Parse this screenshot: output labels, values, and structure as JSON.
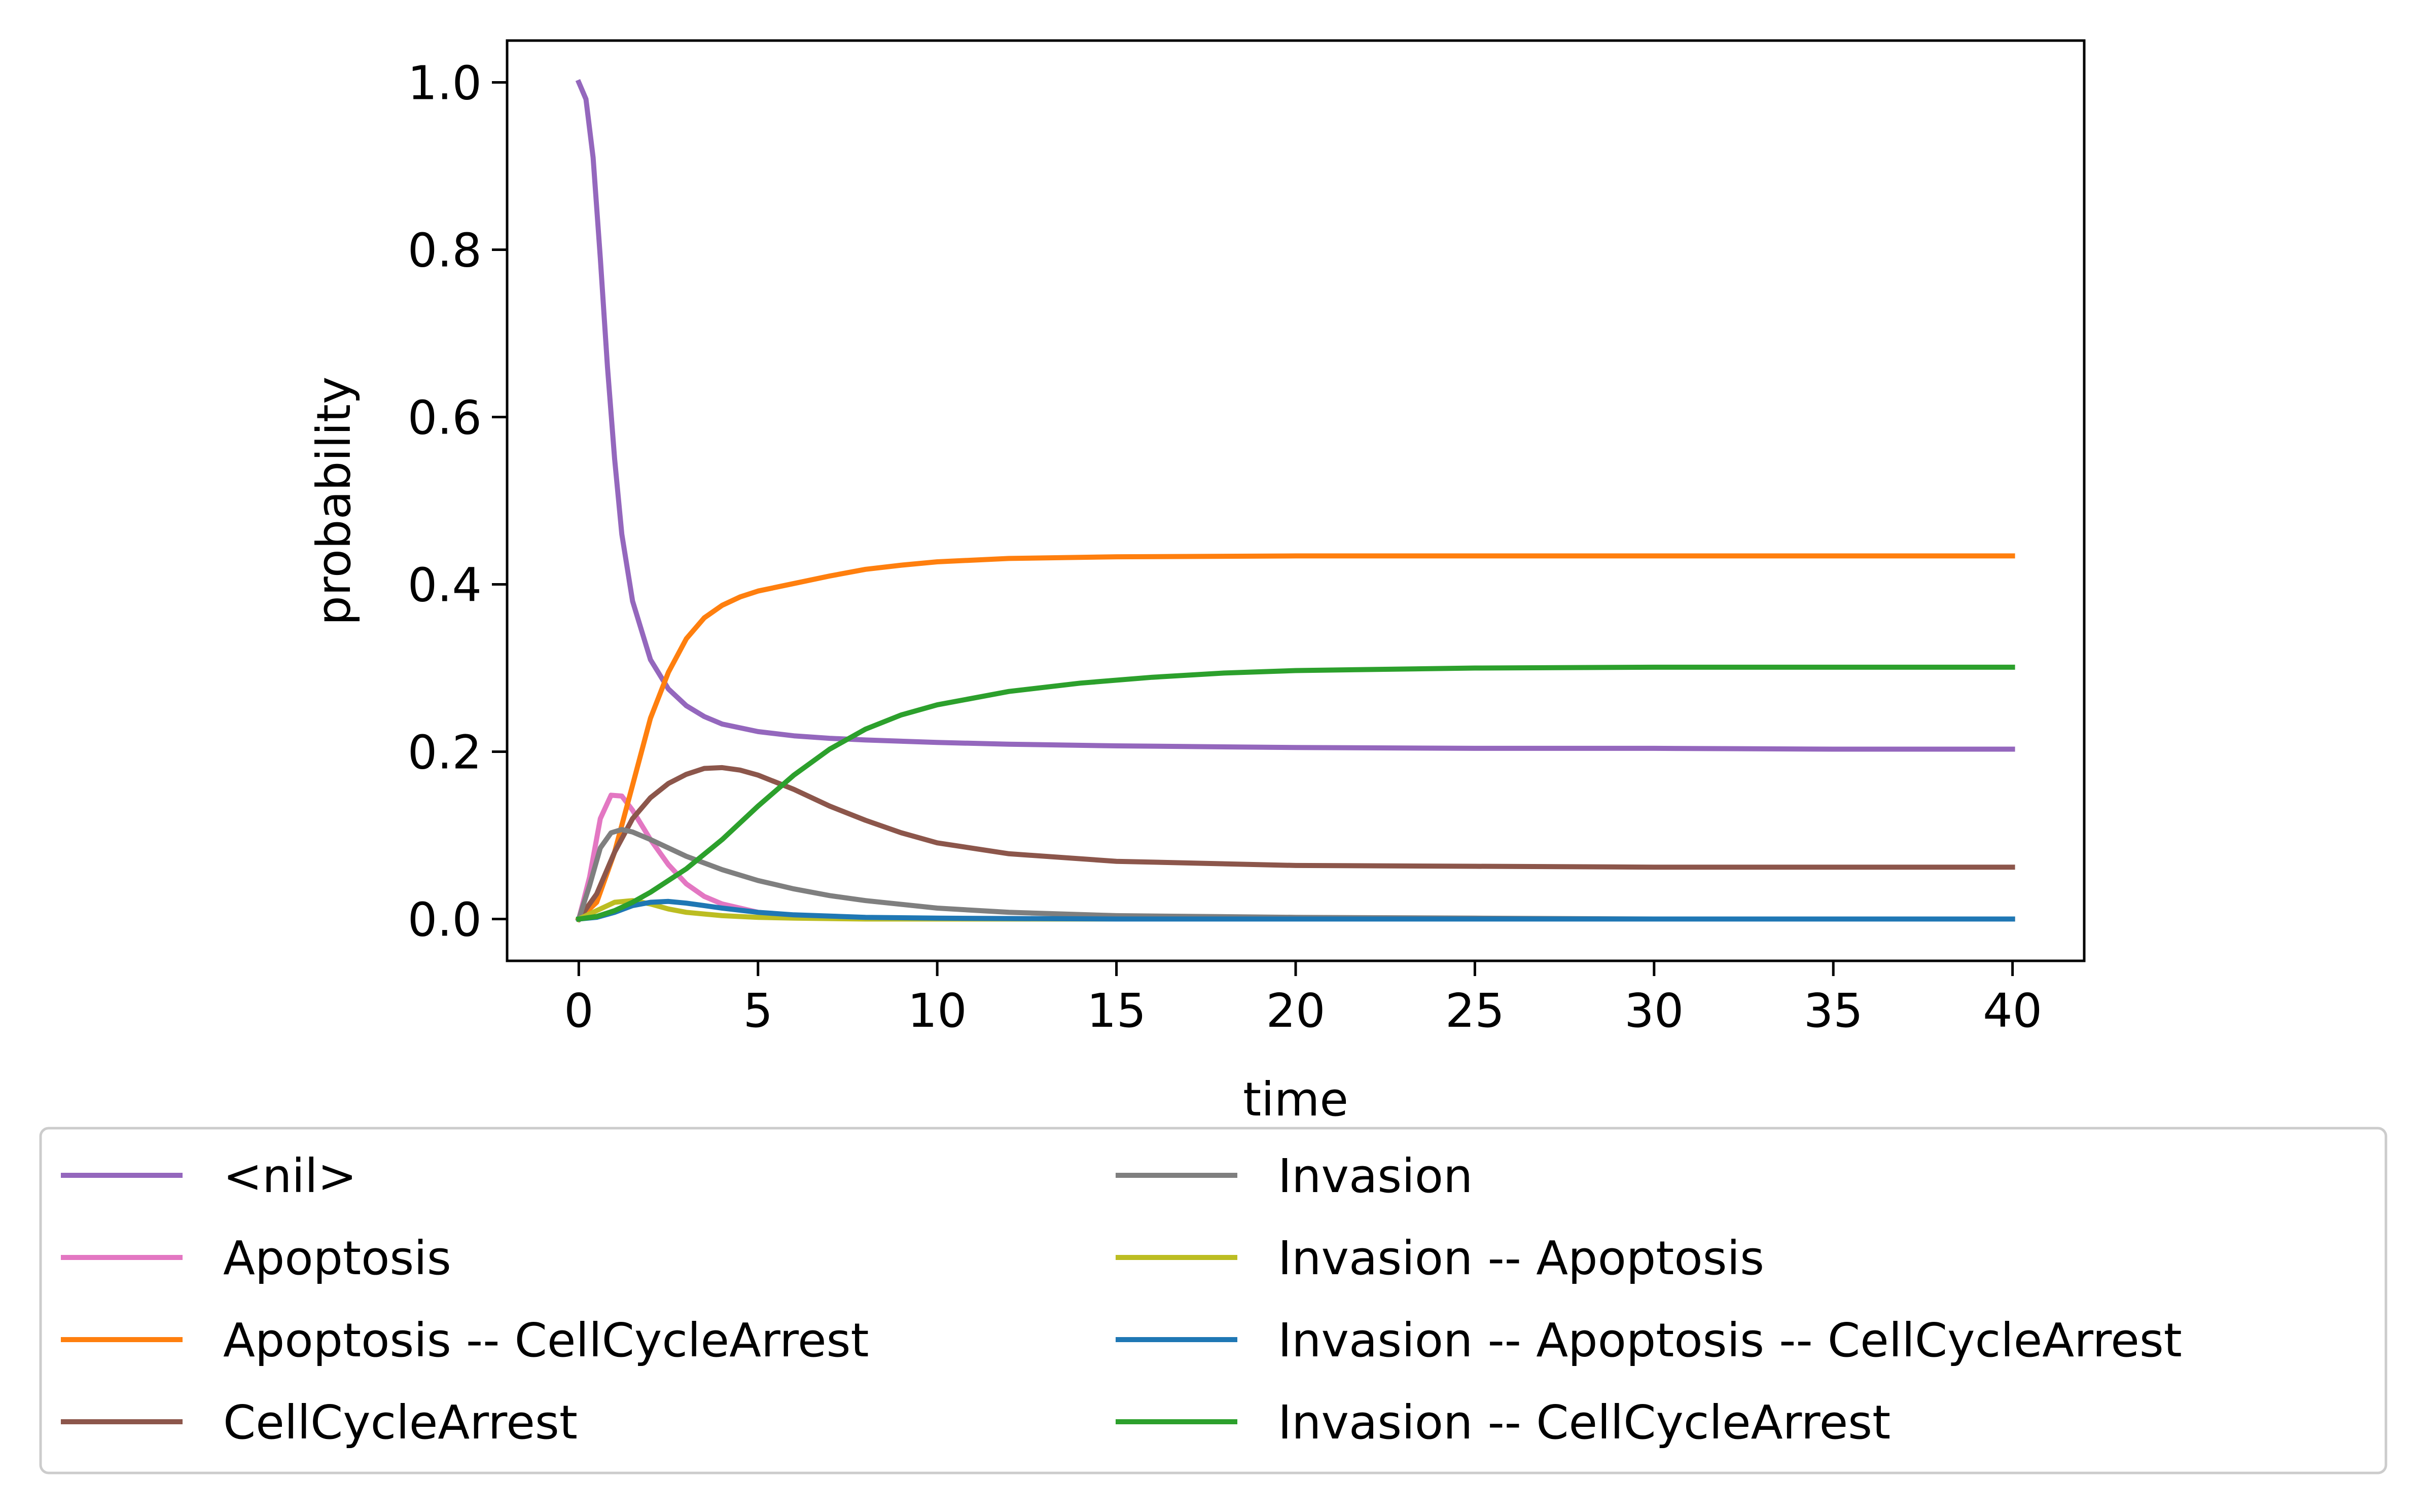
{
  "chart_data": {
    "type": "line",
    "title": "",
    "xlabel": "time",
    "ylabel": "probability",
    "xlim": [
      -2,
      42
    ],
    "ylim": [
      -0.05,
      1.05
    ],
    "xticks": [
      0,
      5,
      10,
      15,
      20,
      25,
      30,
      35,
      40
    ],
    "xtick_labels": [
      "0",
      "5",
      "10",
      "15",
      "20",
      "25",
      "30",
      "35",
      "40"
    ],
    "yticks": [
      0.0,
      0.2,
      0.4,
      0.6,
      0.8,
      1.0
    ],
    "ytick_labels": [
      "0.0",
      "0.2",
      "0.4",
      "0.6",
      "0.8",
      "1.0"
    ],
    "grid": false,
    "legend_position": "below-plot, two columns",
    "series": [
      {
        "name": "<nil>",
        "color": "#9467bd",
        "x": [
          0,
          0.2,
          0.4,
          0.6,
          0.8,
          1,
          1.2,
          1.5,
          2,
          2.5,
          3,
          3.5,
          4,
          5,
          6,
          7,
          8,
          10,
          12,
          15,
          20,
          25,
          30,
          35,
          40
        ],
        "y": [
          1.0,
          0.98,
          0.91,
          0.79,
          0.66,
          0.55,
          0.46,
          0.38,
          0.31,
          0.275,
          0.255,
          0.242,
          0.233,
          0.224,
          0.219,
          0.216,
          0.214,
          0.211,
          0.209,
          0.207,
          0.205,
          0.204,
          0.204,
          0.203,
          0.203
        ]
      },
      {
        "name": "Apoptosis",
        "color": "#e377c2",
        "x": [
          0,
          0.3,
          0.6,
          0.9,
          1.2,
          1.5,
          2,
          2.5,
          3,
          3.5,
          4,
          5,
          6,
          7,
          8,
          10,
          15,
          20,
          30,
          40
        ],
        "y": [
          0.0,
          0.05,
          0.12,
          0.148,
          0.147,
          0.13,
          0.095,
          0.065,
          0.042,
          0.027,
          0.018,
          0.008,
          0.004,
          0.002,
          0.001,
          0.0,
          0.0,
          0.0,
          0.0,
          0.0
        ]
      },
      {
        "name": "Apoptosis -- CellCycleArrest",
        "color": "#ff7f0e",
        "x": [
          0,
          0.5,
          1,
          1.5,
          2,
          2.5,
          3,
          3.5,
          4,
          4.5,
          5,
          6,
          7,
          8,
          9,
          10,
          12,
          15,
          20,
          25,
          30,
          35,
          40
        ],
        "y": [
          0.0,
          0.02,
          0.08,
          0.16,
          0.24,
          0.295,
          0.335,
          0.36,
          0.375,
          0.385,
          0.392,
          0.401,
          0.41,
          0.418,
          0.423,
          0.427,
          0.431,
          0.433,
          0.434,
          0.434,
          0.434,
          0.434,
          0.434
        ]
      },
      {
        "name": "CellCycleArrest",
        "color": "#8c564b",
        "x": [
          0,
          0.5,
          1,
          1.5,
          2,
          2.5,
          3,
          3.5,
          4,
          4.5,
          5,
          6,
          7,
          8,
          9,
          10,
          12,
          15,
          20,
          25,
          30,
          35,
          40
        ],
        "y": [
          0.0,
          0.03,
          0.08,
          0.12,
          0.145,
          0.162,
          0.173,
          0.18,
          0.181,
          0.178,
          0.172,
          0.155,
          0.135,
          0.118,
          0.103,
          0.091,
          0.078,
          0.069,
          0.064,
          0.063,
          0.062,
          0.062,
          0.062
        ]
      },
      {
        "name": "Invasion",
        "color": "#7f7f7f",
        "x": [
          0,
          0.3,
          0.6,
          0.9,
          1.2,
          1.5,
          2,
          2.5,
          3,
          4,
          5,
          6,
          7,
          8,
          10,
          12,
          15,
          20,
          25,
          30,
          35,
          40
        ],
        "y": [
          0.0,
          0.04,
          0.085,
          0.103,
          0.107,
          0.104,
          0.095,
          0.085,
          0.075,
          0.059,
          0.046,
          0.036,
          0.028,
          0.022,
          0.013,
          0.008,
          0.004,
          0.002,
          0.001,
          0.0,
          0.0,
          0.0
        ]
      },
      {
        "name": "Invasion -- Apoptosis",
        "color": "#bcbd22",
        "x": [
          0,
          0.5,
          1,
          1.5,
          2,
          2.5,
          3,
          4,
          5,
          6,
          8,
          10,
          20,
          30,
          40
        ],
        "y": [
          0.0,
          0.01,
          0.02,
          0.022,
          0.018,
          0.012,
          0.008,
          0.004,
          0.002,
          0.001,
          0.0,
          0.0,
          0.0,
          0.0,
          0.0
        ]
      },
      {
        "name": "Invasion -- Apoptosis -- CellCycleArrest",
        "color": "#1f77b4",
        "x": [
          0,
          0.5,
          1,
          1.5,
          2,
          2.5,
          3,
          3.5,
          4,
          5,
          6,
          8,
          10,
          15,
          20,
          30,
          40
        ],
        "y": [
          0.0,
          0.002,
          0.008,
          0.016,
          0.02,
          0.021,
          0.019,
          0.016,
          0.013,
          0.008,
          0.005,
          0.002,
          0.001,
          0.0,
          0.0,
          0.0,
          0.0
        ]
      },
      {
        "name": "Invasion -- CellCycleArrest",
        "color": "#2ca02c",
        "x": [
          0,
          0.5,
          1,
          1.5,
          2,
          3,
          4,
          5,
          6,
          7,
          8,
          9,
          10,
          12,
          14,
          16,
          18,
          20,
          25,
          30,
          35,
          40
        ],
        "y": [
          0.0,
          0.003,
          0.01,
          0.02,
          0.032,
          0.06,
          0.095,
          0.135,
          0.172,
          0.203,
          0.227,
          0.244,
          0.256,
          0.272,
          0.282,
          0.289,
          0.294,
          0.297,
          0.3,
          0.301,
          0.301,
          0.301
        ]
      }
    ]
  }
}
